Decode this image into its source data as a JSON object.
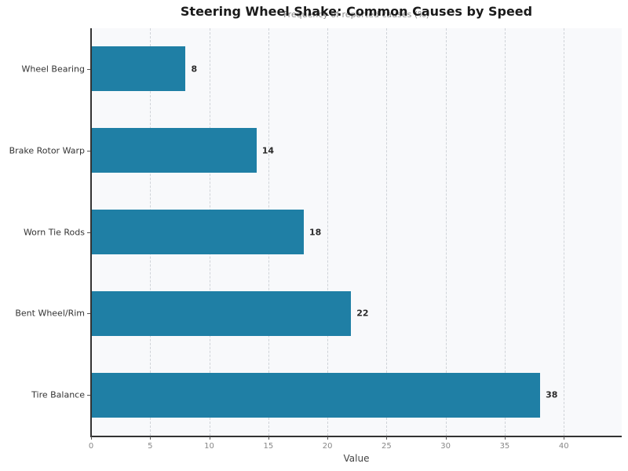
{
  "chart_data": {
    "type": "bar",
    "orientation": "horizontal",
    "title": "Steering Wheel Shake: Common Causes by Speed",
    "subtitle": "Frequency of reported causes (%)",
    "xlabel": "Value",
    "ylabel": "",
    "categories": [
      "Wheel Bearing",
      "Brake Rotor Warp",
      "Worn Tie Rods",
      "Bent Wheel/Rim",
      "Tire Balance"
    ],
    "values": [
      8,
      14,
      18,
      22,
      38
    ],
    "xlim": [
      0,
      44.9
    ],
    "xticks": [
      0,
      5,
      10,
      15,
      20,
      25,
      30,
      35,
      40
    ],
    "grid": "vertical dashed",
    "bar_color": "#1f7fa5",
    "data_labels": true,
    "legend": null
  }
}
